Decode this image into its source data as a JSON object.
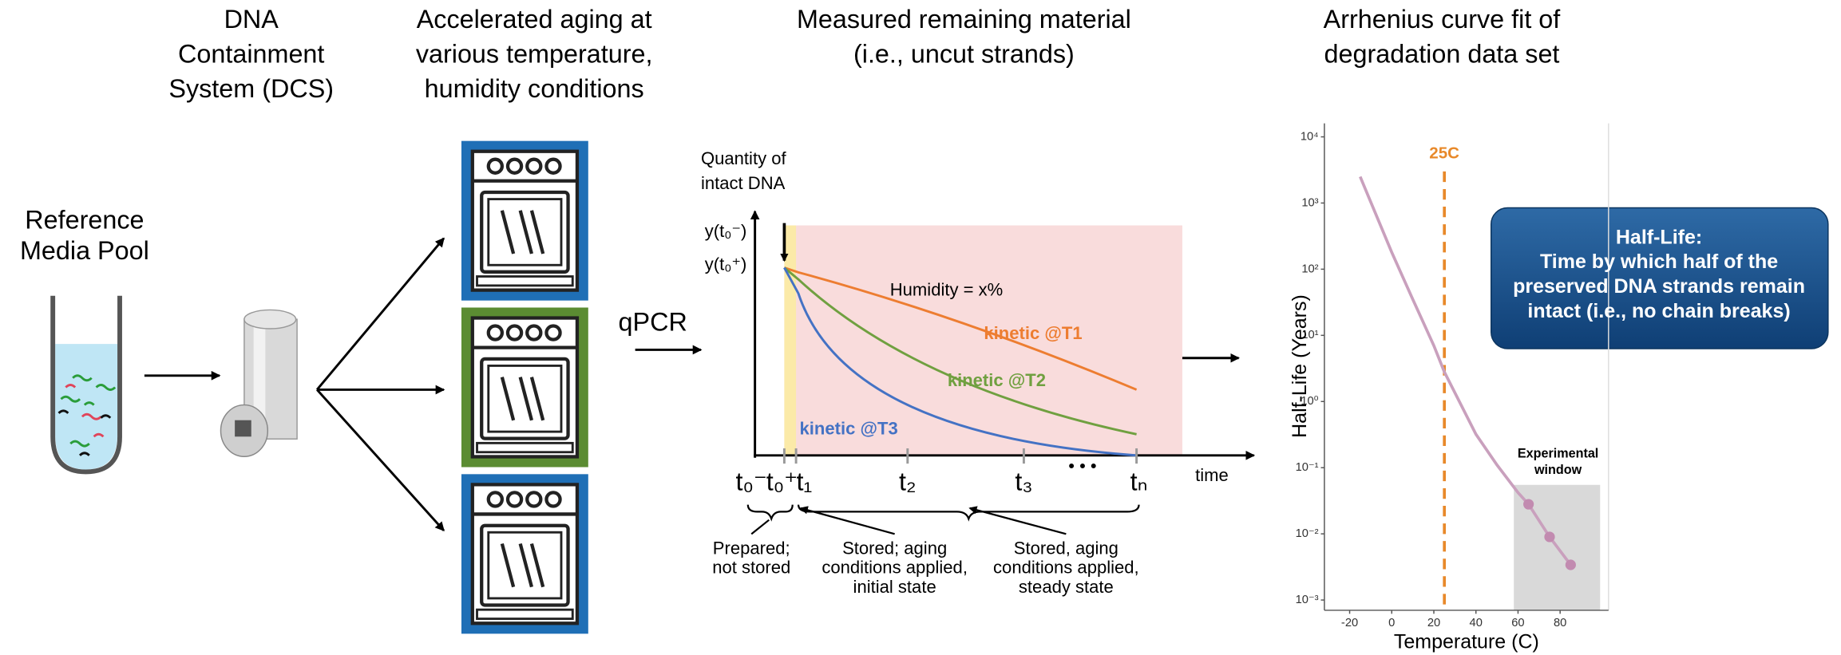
{
  "columns": [
    {
      "lines": [
        "DNA",
        "Containment",
        "System (DCS)"
      ]
    },
    {
      "lines": [
        "Accelerated aging at",
        "various temperature,",
        "humidity conditions"
      ]
    },
    {
      "lines": [
        "Measured remaining material",
        "(i.e., uncut strands)"
      ]
    },
    {
      "lines": [
        "Arrhenius curve fit of",
        "degradation data set"
      ]
    }
  ],
  "reference_media_pool": {
    "lines": [
      "Reference",
      "Media Pool"
    ]
  },
  "qpcr_label": "qPCR",
  "kinetics_plot": {
    "y_label": [
      "Quantity of",
      "intact DNA"
    ],
    "y_ticks": [
      "y(t₀⁻)",
      "y(t₀⁺)"
    ],
    "humidity": "Humidity = x%",
    "curves": [
      "kinetic @T1",
      "kinetic @T2",
      "kinetic @T3"
    ],
    "x_ticks": [
      "t₀⁻",
      "t₀⁺",
      "t₁",
      "t₂",
      "t₃",
      "tₙ"
    ],
    "ellipsis": "• • •",
    "x_label": "time",
    "annotations": [
      {
        "lines": [
          "Prepared;",
          "not stored"
        ]
      },
      {
        "lines": [
          "Stored; aging",
          "conditions applied,",
          "initial state"
        ]
      },
      {
        "lines": [
          "Stored, aging",
          "conditions applied,",
          "steady state"
        ]
      }
    ]
  },
  "arrhenius_chart": {
    "type": "line",
    "x_label": "Temperature (C)",
    "y_label": "Half-Life (Years)",
    "xlim": [
      -32,
      103
    ],
    "xticks": [
      -20,
      0,
      20,
      40,
      60,
      80
    ],
    "ylim": [
      0.0007,
      16000
    ],
    "log_y": true,
    "yticks": [
      {
        "value": 10000,
        "label": "10⁴"
      },
      {
        "value": 1000,
        "label": "10³"
      },
      {
        "value": 100,
        "label": "10²"
      },
      {
        "value": 10,
        "label": "10¹"
      },
      {
        "value": 1,
        "label": "10⁰"
      },
      {
        "value": 0.1,
        "label": "10⁻¹"
      },
      {
        "value": 0.01,
        "label": "10⁻²"
      },
      {
        "value": 0.001,
        "label": "10⁻³"
      }
    ],
    "fit": {
      "color": "#c9a0bd",
      "x": [
        -15,
        0,
        10,
        20,
        25,
        40,
        50,
        60,
        65,
        75,
        85
      ],
      "values": [
        2500,
        180,
        35,
        7,
        2.8,
        0.32,
        0.11,
        0.042,
        0.028,
        0.009,
        0.0034
      ]
    },
    "points": {
      "color": "#c28bb0",
      "x": [
        65,
        75,
        85
      ],
      "values": [
        0.028,
        0.009,
        0.0034
      ]
    },
    "reference_line": {
      "value": 25,
      "label": "25C",
      "color": "#e8892a"
    },
    "experimental_window": {
      "lines": [
        "Experimental",
        "window"
      ],
      "xlim": [
        58,
        99
      ],
      "ylim": [
        0.0007,
        0.055
      ]
    }
  },
  "callout": {
    "lines": [
      "Half-Life:",
      "Time by which half of the",
      "preserved DNA strands remain",
      "intact (i.e., no chain breaks)"
    ]
  }
}
